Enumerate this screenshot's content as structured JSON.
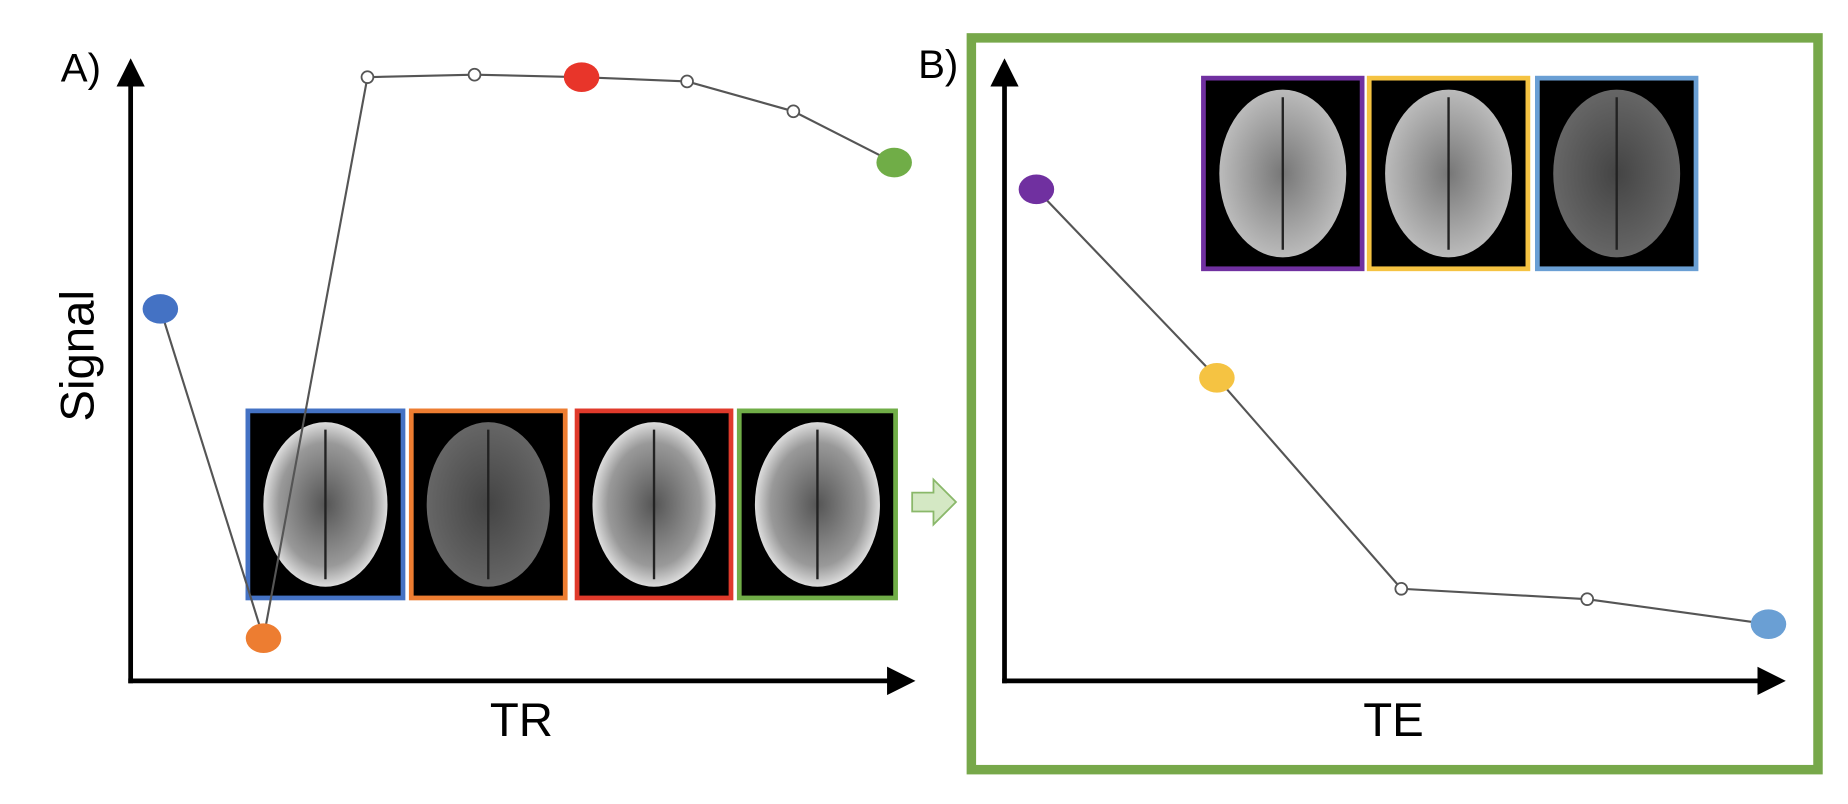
{
  "chart_data": [
    {
      "type": "line",
      "panel_label": "A)",
      "ylabel": "Signal",
      "xlabel": "TR",
      "x": [
        3.8,
        17,
        30.3,
        44,
        57.7,
        71.2,
        84.8,
        97.7
      ],
      "values": [
        61,
        7,
        99,
        99.4,
        99,
        98.3,
        93.4,
        85
      ],
      "point_colors": [
        "#4472c4",
        "#ed7d31",
        "#ffffff",
        "#ffffff",
        "#e8352a",
        "#ffffff",
        "#ffffff",
        "#70ad47"
      ],
      "line_color": "#555555",
      "xlim": [
        0,
        100
      ],
      "ylim": [
        0,
        100
      ]
    },
    {
      "type": "line",
      "panel_label": "B)",
      "xlabel": "TE",
      "x": [
        4.1,
        27.3,
        51,
        74.9,
        98.2
      ],
      "values": [
        80.6,
        49.7,
        15.1,
        13.4,
        9.3
      ],
      "point_colors": [
        "#7030a0",
        "#f5c342",
        "#ffffff",
        "#ffffff",
        "#6a9fd4"
      ],
      "line_color": "#555555",
      "xlim": [
        0,
        100
      ],
      "ylim": [
        0,
        100
      ]
    }
  ]
}
